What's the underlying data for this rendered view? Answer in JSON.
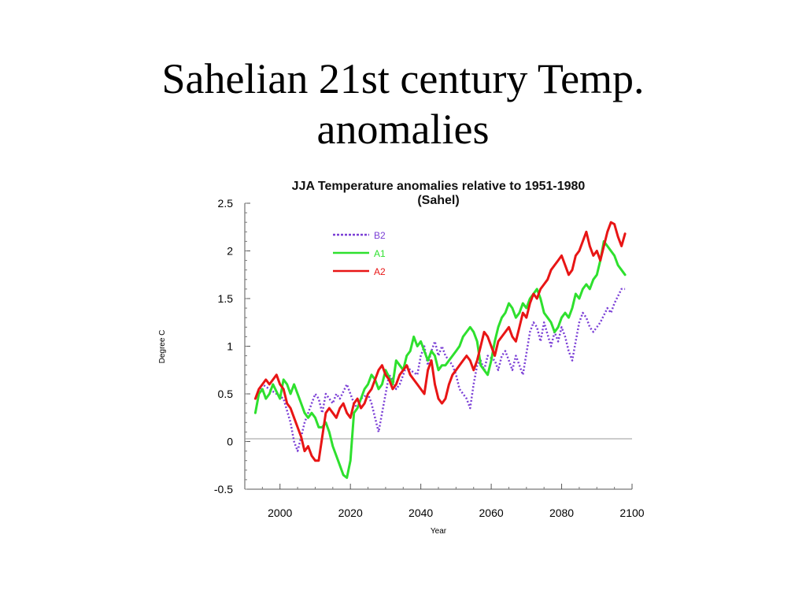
{
  "slide": {
    "title_line1": "Sahelian 21st century Temp.",
    "title_line2": "anomalies"
  },
  "chart_data": {
    "type": "line",
    "title_line1": "JJA Temperature anomalies relative to 1951-1980",
    "title_line2": "(Sahel)",
    "xlabel": "Year",
    "ylabel": "Degree C",
    "xlim": [
      1990,
      2100
    ],
    "ylim": [
      -0.5,
      2.5
    ],
    "xticks": [
      "2000",
      "2020",
      "2040",
      "2060",
      "2080",
      "2100"
    ],
    "yticks": [
      "2.5",
      "2",
      "1.5",
      "1",
      "0.5",
      "0",
      "-0.5"
    ],
    "zero_line": true,
    "grid": false,
    "legend_position": "top-left",
    "series": [
      {
        "name": "B2",
        "color": "#7b3fd6",
        "style": "dotted",
        "x": [
          1993,
          1995,
          1997,
          1999,
          2001,
          2003,
          2004,
          2005,
          2006,
          2007,
          2009,
          2010,
          2011,
          2012,
          2013,
          2015,
          2016,
          2017,
          2019,
          2020,
          2021,
          2022,
          2023,
          2025,
          2026,
          2027,
          2028,
          2029,
          2030,
          2031,
          2032,
          2033,
          2034,
          2035,
          2036,
          2037,
          2039,
          2040,
          2041,
          2042,
          2043,
          2044,
          2045,
          2046,
          2047,
          2049,
          2050,
          2051,
          2053,
          2054,
          2055,
          2056,
          2057,
          2058,
          2059,
          2061,
          2062,
          2063,
          2064,
          2065,
          2066,
          2067,
          2068,
          2069,
          2071,
          2072,
          2073,
          2074,
          2075,
          2077,
          2078,
          2079,
          2080,
          2081,
          2082,
          2083,
          2084,
          2085,
          2086,
          2087,
          2088,
          2089,
          2090,
          2091,
          2093,
          2094,
          2095,
          2097,
          2098
        ],
        "y": [
          0.45,
          0.6,
          0.55,
          0.5,
          0.45,
          0.2,
          0.0,
          -0.1,
          0.05,
          0.2,
          0.4,
          0.5,
          0.45,
          0.3,
          0.5,
          0.4,
          0.5,
          0.45,
          0.6,
          0.5,
          0.4,
          0.35,
          0.45,
          0.5,
          0.4,
          0.25,
          0.1,
          0.3,
          0.5,
          0.7,
          0.65,
          0.55,
          0.6,
          0.7,
          0.8,
          0.75,
          0.7,
          0.9,
          1.0,
          0.8,
          0.95,
          1.05,
          0.9,
          1.0,
          0.9,
          0.8,
          0.7,
          0.55,
          0.45,
          0.35,
          0.6,
          0.8,
          0.85,
          0.75,
          0.9,
          0.85,
          0.75,
          0.9,
          0.95,
          0.85,
          0.75,
          0.9,
          0.8,
          0.7,
          1.15,
          1.25,
          1.2,
          1.05,
          1.25,
          1.0,
          1.15,
          1.05,
          1.2,
          1.1,
          0.95,
          0.85,
          1.05,
          1.25,
          1.35,
          1.3,
          1.2,
          1.15,
          1.2,
          1.25,
          1.4,
          1.35,
          1.45,
          1.6,
          1.6
        ]
      },
      {
        "name": "A1",
        "color": "#2ee02e",
        "style": "solid",
        "x": [
          1993,
          1994,
          1995,
          1996,
          1997,
          1998,
          2000,
          2001,
          2002,
          2003,
          2004,
          2005,
          2006,
          2007,
          2008,
          2009,
          2010,
          2011,
          2012,
          2013,
          2014,
          2015,
          2016,
          2017,
          2018,
          2019,
          2020,
          2021,
          2022,
          2023,
          2024,
          2025,
          2026,
          2027,
          2028,
          2029,
          2030,
          2032,
          2033,
          2034,
          2035,
          2036,
          2037,
          2038,
          2039,
          2040,
          2041,
          2042,
          2043,
          2044,
          2045,
          2046,
          2047,
          2048,
          2049,
          2050,
          2051,
          2052,
          2053,
          2054,
          2055,
          2056,
          2057,
          2058,
          2059,
          2060,
          2061,
          2062,
          2063,
          2064,
          2065,
          2066,
          2067,
          2068,
          2069,
          2070,
          2071,
          2072,
          2073,
          2074,
          2075,
          2076,
          2077,
          2078,
          2079,
          2080,
          2081,
          2082,
          2083,
          2084,
          2085,
          2086,
          2087,
          2088,
          2089,
          2090,
          2091,
          2092,
          2093,
          2094,
          2095,
          2096,
          2097,
          2098
        ],
        "y": [
          0.3,
          0.5,
          0.55,
          0.45,
          0.5,
          0.6,
          0.45,
          0.65,
          0.6,
          0.5,
          0.6,
          0.5,
          0.4,
          0.3,
          0.25,
          0.3,
          0.25,
          0.15,
          0.15,
          0.2,
          0.1,
          -0.05,
          -0.15,
          -0.25,
          -0.35,
          -0.38,
          -0.2,
          0.3,
          0.35,
          0.45,
          0.55,
          0.6,
          0.7,
          0.65,
          0.55,
          0.6,
          0.75,
          0.6,
          0.85,
          0.8,
          0.75,
          0.9,
          0.95,
          1.1,
          1.0,
          1.05,
          0.95,
          0.85,
          0.95,
          0.9,
          0.75,
          0.8,
          0.8,
          0.85,
          0.9,
          0.95,
          1.0,
          1.1,
          1.15,
          1.2,
          1.15,
          1.05,
          0.8,
          0.75,
          0.7,
          0.85,
          1.05,
          1.2,
          1.3,
          1.35,
          1.45,
          1.4,
          1.3,
          1.35,
          1.45,
          1.4,
          1.5,
          1.55,
          1.6,
          1.5,
          1.35,
          1.3,
          1.25,
          1.15,
          1.2,
          1.3,
          1.35,
          1.3,
          1.4,
          1.55,
          1.5,
          1.6,
          1.65,
          1.6,
          1.7,
          1.75,
          1.9,
          2.1,
          2.05,
          2.0,
          1.95,
          1.85,
          1.8,
          1.75
        ]
      },
      {
        "name": "A2",
        "color": "#e81515",
        "style": "solid",
        "x": [
          1993,
          1994,
          1995,
          1996,
          1997,
          1998,
          1999,
          2000,
          2001,
          2002,
          2003,
          2004,
          2005,
          2006,
          2007,
          2008,
          2009,
          2010,
          2011,
          2012,
          2013,
          2014,
          2015,
          2016,
          2017,
          2018,
          2019,
          2020,
          2021,
          2022,
          2023,
          2024,
          2025,
          2026,
          2027,
          2028,
          2029,
          2030,
          2031,
          2032,
          2033,
          2034,
          2035,
          2036,
          2037,
          2038,
          2039,
          2040,
          2041,
          2042,
          2043,
          2044,
          2045,
          2046,
          2047,
          2048,
          2049,
          2050,
          2051,
          2052,
          2053,
          2054,
          2055,
          2056,
          2057,
          2058,
          2059,
          2060,
          2061,
          2062,
          2063,
          2064,
          2065,
          2066,
          2067,
          2068,
          2069,
          2070,
          2071,
          2072,
          2073,
          2074,
          2075,
          2076,
          2077,
          2078,
          2079,
          2080,
          2081,
          2082,
          2083,
          2084,
          2085,
          2086,
          2087,
          2088,
          2089,
          2090,
          2091,
          2092,
          2093,
          2094,
          2095,
          2096,
          2097,
          2098
        ],
        "y": [
          0.45,
          0.55,
          0.6,
          0.65,
          0.6,
          0.65,
          0.7,
          0.6,
          0.55,
          0.4,
          0.35,
          0.25,
          0.15,
          0.05,
          -0.1,
          -0.05,
          -0.15,
          -0.2,
          -0.2,
          0.05,
          0.3,
          0.35,
          0.3,
          0.25,
          0.35,
          0.4,
          0.3,
          0.25,
          0.4,
          0.45,
          0.35,
          0.4,
          0.5,
          0.55,
          0.65,
          0.75,
          0.8,
          0.7,
          0.65,
          0.55,
          0.6,
          0.7,
          0.75,
          0.8,
          0.7,
          0.65,
          0.6,
          0.55,
          0.5,
          0.75,
          0.85,
          0.6,
          0.45,
          0.4,
          0.45,
          0.6,
          0.7,
          0.75,
          0.8,
          0.85,
          0.9,
          0.85,
          0.75,
          0.85,
          1.0,
          1.15,
          1.1,
          1.0,
          0.9,
          1.05,
          1.1,
          1.15,
          1.2,
          1.1,
          1.05,
          1.2,
          1.35,
          1.3,
          1.45,
          1.55,
          1.5,
          1.6,
          1.65,
          1.7,
          1.8,
          1.85,
          1.9,
          1.95,
          1.85,
          1.75,
          1.8,
          1.95,
          2.0,
          2.1,
          2.2,
          2.05,
          1.95,
          2.0,
          1.9,
          2.05,
          2.2,
          2.3,
          2.28,
          2.15,
          2.05,
          2.18
        ]
      }
    ]
  }
}
